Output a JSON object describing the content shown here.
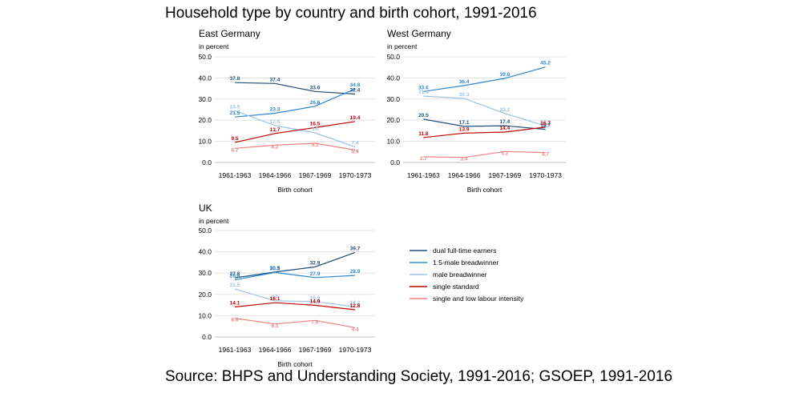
{
  "title": "Household type by country and birth cohort, 1991-2016",
  "source": "Source: BHPS and Understanding Society, 1991-2016; GSOEP, 1991-2016",
  "legend": [
    {
      "name": "dual full-time earners",
      "color": "#1f4e79"
    },
    {
      "name": "1.5-male breadwinner",
      "color": "#2e86d1"
    },
    {
      "name": "male breadwinner",
      "color": "#9dc3e6"
    },
    {
      "name": "single standard",
      "color": "#c00000"
    },
    {
      "name": "single and low labour intensity",
      "color": "#f08080"
    }
  ],
  "chart_data": [
    {
      "type": "line",
      "title": "East Germany",
      "ylabel": "in percent",
      "xlabel": "Birth cohort",
      "categories": [
        "1961-1963",
        "1964-1966",
        "1967-1969",
        "1970-1973"
      ],
      "ylim": [
        0,
        50
      ],
      "yticks": [
        "0.0",
        "10.0",
        "20.0",
        "30.0",
        "40.0",
        "50.0"
      ],
      "series": [
        {
          "name": "dual full-time earners",
          "values": [
            37.8,
            37.4,
            33.6,
            32.4
          ]
        },
        {
          "name": "1.5-male breadwinner",
          "values": [
            21.5,
            23.3,
            26.6,
            34.8
          ]
        },
        {
          "name": "male breadwinner",
          "values": [
            24.5,
            17.5,
            14,
            7.4
          ]
        },
        {
          "name": "single standard",
          "values": [
            9.5,
            13.7,
            16.5,
            19.4
          ]
        },
        {
          "name": "single and low labour intensity",
          "values": [
            6.7,
            8.2,
            9.1,
            5.9
          ]
        }
      ]
    },
    {
      "type": "line",
      "title": "West Germany",
      "ylabel": "in percent",
      "xlabel": "Birth cohort",
      "categories": [
        "1961-1963",
        "1964-1966",
        "1967-1969",
        "1970-1973"
      ],
      "ylim": [
        0,
        50
      ],
      "yticks": [
        "0.0",
        "10.0",
        "20.0",
        "30.0",
        "40.0",
        "50.0"
      ],
      "series": [
        {
          "name": "dual full-time earners",
          "values": [
            20.5,
            17.1,
            17.4,
            15.7
          ]
        },
        {
          "name": "1.5-male breadwinner",
          "values": [
            33.6,
            36.4,
            39.8,
            45.2
          ]
        },
        {
          "name": "male breadwinner",
          "values": [
            31.4,
            30.3,
            23.2,
            17.3
          ]
        },
        {
          "name": "single standard",
          "values": [
            11.8,
            13.9,
            14.4,
            16.7
          ]
        },
        {
          "name": "single and low labour intensity",
          "values": [
            2.7,
            2.4,
            5.2,
            4.7
          ]
        }
      ]
    },
    {
      "type": "line",
      "title": "UK",
      "ylabel": "in percent",
      "xlabel": "Birth cohort",
      "categories": [
        "1961-1963",
        "1964-1966",
        "1967-1969",
        "1970-1973"
      ],
      "ylim": [
        0,
        50
      ],
      "yticks": [
        "0.0",
        "10.0",
        "20.0",
        "30.0",
        "40.0",
        "50.0"
      ],
      "series": [
        {
          "name": "dual full-time earners",
          "values": [
            27.8,
            30.5,
            32.9,
            39.7
          ]
        },
        {
          "name": "1.5-male breadwinner",
          "values": [
            26.8,
            30.3,
            27.9,
            28.9
          ]
        },
        {
          "name": "male breadwinner",
          "values": [
            22.5,
            17,
            16.6,
            14.2
          ]
        },
        {
          "name": "single standard",
          "values": [
            14.1,
            16.1,
            14.9,
            12.8
          ]
        },
        {
          "name": "single and low labour intensity",
          "values": [
            8.8,
            6.1,
            7.8,
            4.4
          ]
        }
      ]
    }
  ]
}
